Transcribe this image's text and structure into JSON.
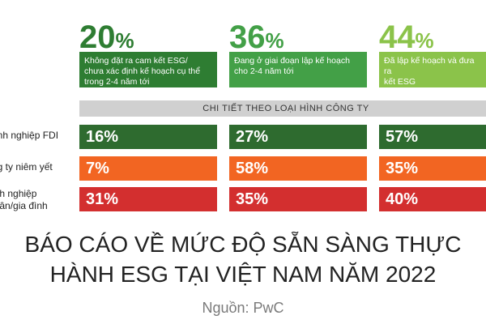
{
  "chart_data": {
    "type": "table",
    "title_line1": "BÁO CÁO VỀ MỨC ĐỘ SẴN SÀNG THỰC",
    "title_line2": "HÀNH ESG TẠI VIỆT NAM NĂM 2022",
    "source": "Nguồn: PwC",
    "section_label": "CHI TIẾT THEO LOẠI HÌNH CÔNG TY",
    "columns": [
      {
        "percent": "20",
        "symbol": "%",
        "value": 20,
        "color": "#2e7d32",
        "desc": [
          "Không đặt ra cam kết ESG/",
          "chưa xác định kế hoạch cụ thể",
          "trong 2-4 năm tới"
        ]
      },
      {
        "percent": "36",
        "symbol": "%",
        "value": 36,
        "color": "#43a047",
        "desc": [
          "Đang ở giai đoạn lập kế hoạch",
          "cho 2-4 năm tới"
        ]
      },
      {
        "percent": "44",
        "symbol": "%",
        "value": 44,
        "color": "#8bc34a",
        "desc": [
          "Đã lập kế hoạch và đưa ra",
          "kết ESG"
        ]
      }
    ],
    "rows": [
      {
        "label": [
          "anh nghiệp FDI"
        ],
        "color": "#2e6b2f",
        "cells": [
          "16%",
          "27%",
          "57%"
        ],
        "values": [
          16,
          27,
          57
        ]
      },
      {
        "label": [
          "ng ty niêm yết"
        ],
        "color": "#f26522",
        "cells": [
          "7%",
          "58%",
          "35%"
        ],
        "values": [
          7,
          58,
          35
        ]
      },
      {
        "label": [
          "anh nghiệp",
          "nhân/gia đình"
        ],
        "color": "#d32f2f",
        "cells": [
          "31%",
          "35%",
          "40%"
        ],
        "values": [
          31,
          35,
          40
        ]
      }
    ]
  }
}
